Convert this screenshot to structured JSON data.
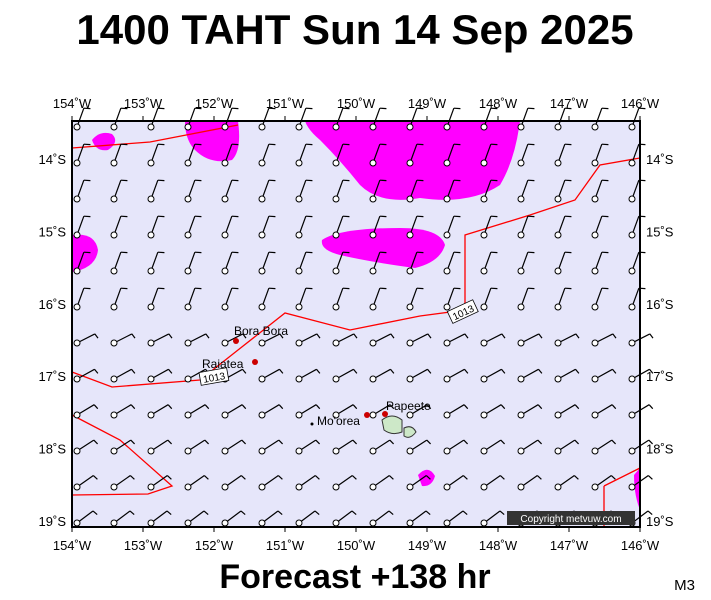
{
  "title": "1400 TAHT Sun 14 Sep 2025",
  "footer": "Forecast +138 hr",
  "model": "M3",
  "copyright": "Copyright metvuw.com",
  "lon_labels": [
    "154˚W",
    "153˚W",
    "152˚W",
    "151˚W",
    "150˚W",
    "149˚W",
    "148˚W",
    "147˚W",
    "146˚W"
  ],
  "lat_labels": [
    "14˚S",
    "15˚S",
    "16˚S",
    "17˚S",
    "18˚S",
    "19˚S"
  ],
  "places": [
    "Bora Bora",
    "Raiatea",
    "Mo'orea",
    "Papeete"
  ],
  "isobar_labels": [
    "1013",
    "1013"
  ]
}
